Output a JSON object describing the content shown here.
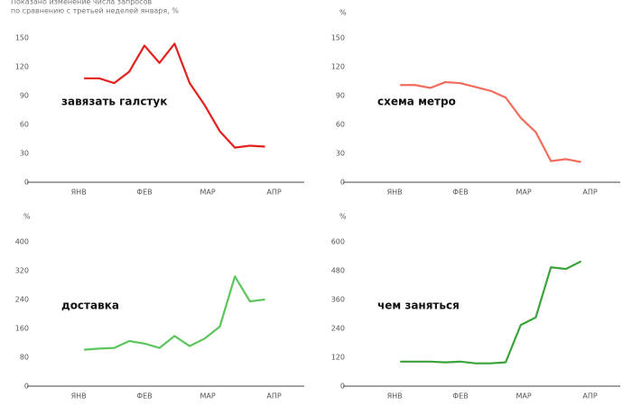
{
  "chart_data": [
    {
      "type": "line",
      "subtitle_lines": [
        "Показано изменение числа запросов",
        "по сравнению с третьей неделей января, %"
      ],
      "x": [
        1,
        2,
        3,
        4,
        5,
        6,
        7,
        8,
        9,
        10,
        11,
        12,
        13
      ],
      "xlim": [
        -2.3,
        15.6
      ],
      "xticks": [
        {
          "value": 0.64,
          "label": "ЯНВ"
        },
        {
          "value": 5.0,
          "label": "ФЕВ"
        },
        {
          "value": 9.2,
          "label": "МАР"
        },
        {
          "value": 13.6,
          "label": "АПР"
        }
      ],
      "ylim": [
        0,
        150
      ],
      "yticks": [
        0,
        30,
        60,
        90,
        120,
        150
      ],
      "series": [
        {
          "name": "завязать галстук",
          "color": "#e2201c",
          "values": [
            108,
            108,
            103,
            115,
            142,
            124,
            144,
            103,
            80,
            53,
            36,
            38,
            37
          ]
        }
      ]
    },
    {
      "type": "line",
      "unit": "%",
      "x": [
        1,
        2,
        3,
        4,
        5,
        6,
        7,
        8,
        9,
        10,
        11,
        12,
        13
      ],
      "xlim": [
        -2.3,
        15.6
      ],
      "xticks": [
        {
          "value": 0.64,
          "label": "ЯНВ"
        },
        {
          "value": 5.0,
          "label": "ФЕВ"
        },
        {
          "value": 9.2,
          "label": "МАР"
        },
        {
          "value": 13.6,
          "label": "АПР"
        }
      ],
      "ylim": [
        0,
        150
      ],
      "yticks": [
        0,
        30,
        60,
        90,
        120,
        150
      ],
      "series": [
        {
          "name": "схема метро",
          "color": "#f26b5b",
          "values": [
            101,
            101,
            98,
            104,
            103,
            99,
            95,
            88,
            67,
            52,
            22,
            24,
            21
          ]
        }
      ]
    },
    {
      "type": "line",
      "unit": "%",
      "x": [
        1,
        2,
        3,
        4,
        5,
        6,
        7,
        8,
        9,
        10,
        11,
        12,
        13
      ],
      "xlim": [
        -2.3,
        15.6
      ],
      "xticks": [
        {
          "value": 0.64,
          "label": "ЯНВ"
        },
        {
          "value": 5.0,
          "label": "ФЕВ"
        },
        {
          "value": 9.2,
          "label": "МАР"
        },
        {
          "value": 13.6,
          "label": "АПР"
        }
      ],
      "ylim": [
        0,
        400
      ],
      "yticks": [
        0,
        80,
        160,
        240,
        320,
        400
      ],
      "series": [
        {
          "name": "доставка",
          "color": "#5cc55c",
          "values": [
            101,
            104,
            106,
            125,
            118,
            106,
            139,
            111,
            132,
            165,
            304,
            235,
            240
          ]
        }
      ]
    },
    {
      "type": "line",
      "unit": "%",
      "x": [
        1,
        2,
        3,
        4,
        5,
        6,
        7,
        8,
        9,
        10,
        11,
        12,
        13
      ],
      "xlim": [
        -2.3,
        15.6
      ],
      "xticks": [
        {
          "value": 0.64,
          "label": "ЯНВ"
        },
        {
          "value": 5.0,
          "label": "ФЕВ"
        },
        {
          "value": 9.2,
          "label": "МАР"
        },
        {
          "value": 13.6,
          "label": "АПР"
        }
      ],
      "ylim": [
        0,
        600
      ],
      "yticks": [
        0,
        120,
        240,
        360,
        480,
        600
      ],
      "series": [
        {
          "name": "чем заняться",
          "color": "#3aa43a",
          "values": [
            102,
            102,
            102,
            99,
            102,
            95,
            95,
            99,
            254,
            286,
            494,
            487,
            519
          ]
        }
      ]
    }
  ]
}
